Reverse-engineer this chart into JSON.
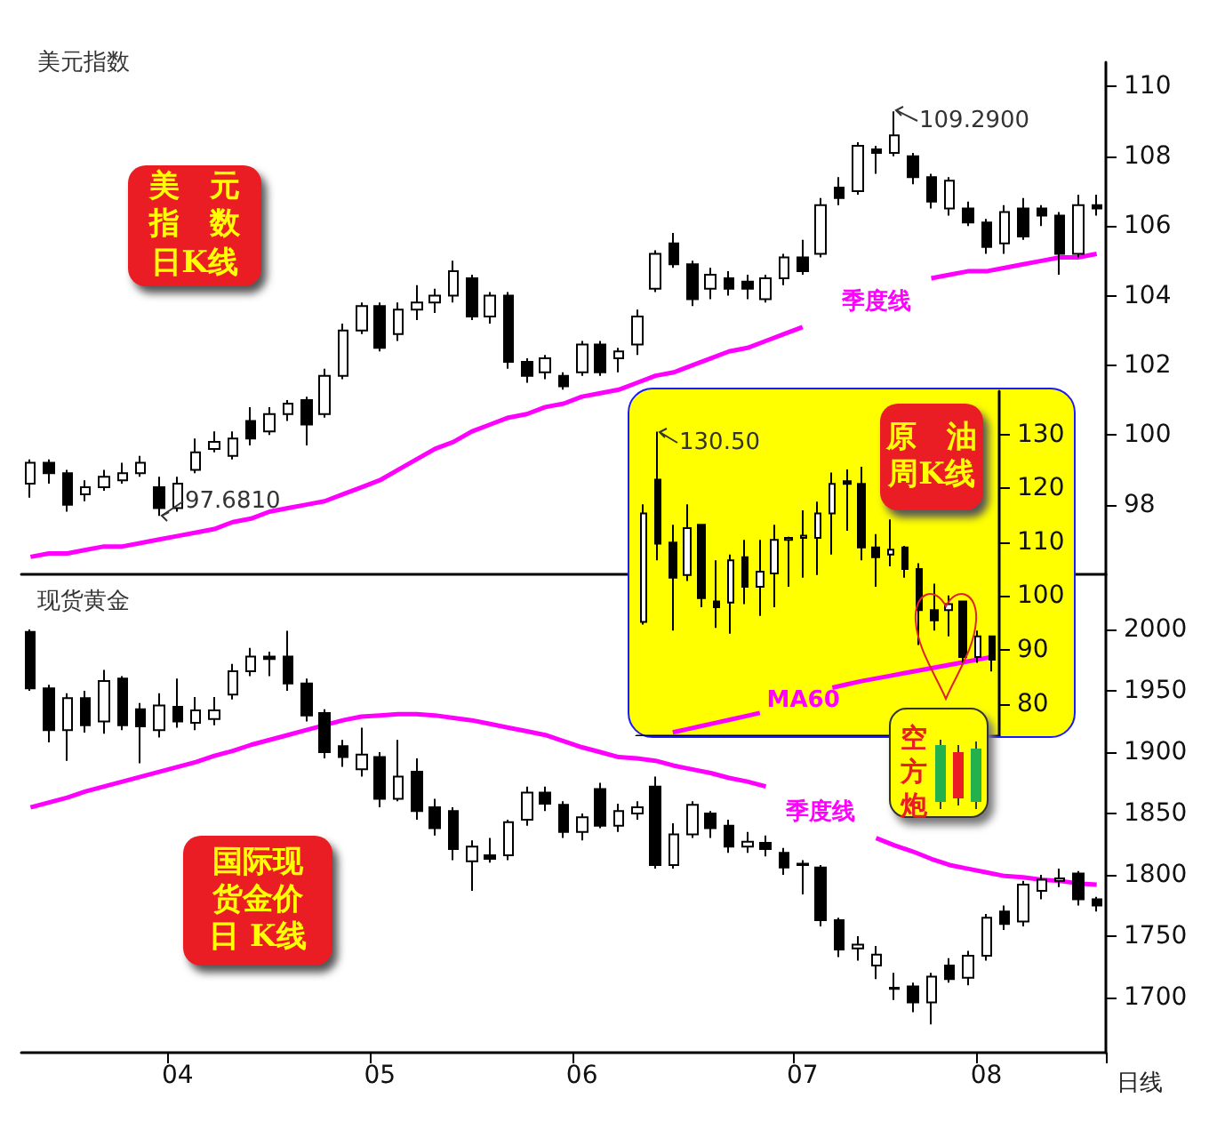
{
  "chart_data": [
    {
      "type": "candlestick",
      "title": "美元指数",
      "tick_labels": "y",
      "categories": [
        null,
        null,
        null,
        null,
        null,
        null,
        null,
        null,
        "04",
        null,
        null,
        null,
        null,
        null,
        null,
        null,
        null,
        null,
        null,
        "05",
        null,
        null,
        null,
        null,
        null,
        null,
        null,
        null,
        null,
        null,
        "06",
        null,
        null,
        null,
        null,
        null,
        null,
        null,
        null,
        null,
        null,
        null,
        "07",
        null,
        null,
        null,
        null,
        null,
        null,
        null,
        null,
        null,
        "08",
        null,
        null,
        null,
        null,
        null,
        null
      ],
      "ohlc": [
        [
          98.6,
          99.3,
          98.2,
          99.2
        ],
        [
          99.2,
          99.3,
          98.6,
          98.9
        ],
        [
          98.9,
          99.0,
          97.8,
          98.0
        ],
        [
          98.3,
          98.7,
          98.1,
          98.5
        ],
        [
          98.5,
          99.0,
          98.4,
          98.8
        ],
        [
          98.7,
          99.2,
          98.6,
          98.9
        ],
        [
          98.9,
          99.4,
          98.8,
          99.2
        ],
        [
          98.5,
          98.8,
          97.681,
          97.9
        ],
        [
          97.9,
          98.8,
          97.8,
          98.6
        ],
        [
          99.0,
          99.9,
          98.9,
          99.5
        ],
        [
          99.6,
          100.1,
          99.5,
          99.8
        ],
        [
          99.4,
          100.1,
          99.3,
          99.9
        ],
        [
          100.4,
          100.8,
          99.7,
          99.9
        ],
        [
          100.1,
          100.8,
          100.0,
          100.6
        ],
        [
          100.6,
          101.0,
          100.4,
          100.9
        ],
        [
          101.0,
          101.1,
          99.7,
          100.3
        ],
        [
          100.6,
          101.9,
          100.5,
          101.7
        ],
        [
          101.7,
          103.2,
          101.6,
          103.0
        ],
        [
          103.0,
          103.8,
          102.9,
          103.7
        ],
        [
          103.7,
          103.8,
          102.4,
          102.5
        ],
        [
          102.9,
          103.8,
          102.7,
          103.6
        ],
        [
          103.6,
          104.3,
          103.3,
          103.8
        ],
        [
          103.8,
          104.2,
          103.5,
          104.0
        ],
        [
          104.0,
          105.0,
          103.8,
          104.7
        ],
        [
          104.5,
          104.6,
          103.3,
          103.4
        ],
        [
          103.4,
          104.1,
          103.2,
          104.0
        ],
        [
          104.0,
          104.1,
          101.9,
          102.1
        ],
        [
          102.1,
          102.2,
          101.5,
          101.7
        ],
        [
          101.8,
          102.3,
          101.6,
          102.2
        ],
        [
          101.7,
          101.8,
          101.3,
          101.4
        ],
        [
          101.8,
          102.7,
          101.7,
          102.6
        ],
        [
          102.6,
          102.7,
          101.7,
          101.8
        ],
        [
          102.2,
          102.5,
          101.8,
          102.4
        ],
        [
          102.6,
          103.6,
          102.3,
          103.4
        ],
        [
          104.2,
          105.3,
          104.1,
          105.2
        ],
        [
          105.5,
          105.8,
          104.8,
          104.9
        ],
        [
          104.9,
          105.0,
          103.7,
          103.9
        ],
        [
          104.2,
          104.8,
          103.9,
          104.6
        ],
        [
          104.5,
          104.7,
          104.0,
          104.2
        ],
        [
          104.4,
          104.6,
          103.9,
          104.2
        ],
        [
          103.9,
          104.6,
          103.8,
          104.5
        ],
        [
          104.5,
          105.2,
          104.3,
          105.1
        ],
        [
          105.1,
          105.6,
          104.6,
          104.7
        ],
        [
          105.2,
          106.8,
          105.1,
          106.6
        ],
        [
          107.1,
          107.4,
          106.6,
          106.8
        ],
        [
          107.0,
          108.4,
          106.9,
          108.3
        ],
        [
          108.2,
          108.3,
          107.5,
          108.1
        ],
        [
          108.1,
          109.29,
          108.0,
          108.6
        ],
        [
          108.0,
          108.1,
          107.2,
          107.4
        ],
        [
          107.4,
          107.5,
          106.5,
          106.7
        ],
        [
          106.5,
          107.4,
          106.3,
          107.3
        ],
        [
          106.5,
          106.7,
          106.0,
          106.1
        ],
        [
          106.1,
          106.2,
          105.2,
          105.4
        ],
        [
          105.5,
          106.6,
          105.2,
          106.4
        ],
        [
          106.5,
          106.8,
          105.6,
          105.7
        ],
        [
          106.5,
          106.6,
          106.0,
          106.3
        ],
        [
          106.3,
          106.4,
          104.6,
          105.2
        ],
        [
          105.2,
          106.9,
          105.1,
          106.6
        ],
        [
          106.6,
          106.9,
          106.3,
          106.5
        ]
      ],
      "series": [
        {
          "type": "line",
          "name": "季度线",
          "color": "#ff00ff",
          "values": [
            96.5,
            96.6,
            96.6,
            96.7,
            96.8,
            96.8,
            96.9,
            97.0,
            97.1,
            97.2,
            97.3,
            97.5,
            97.6,
            97.8,
            97.9,
            98.0,
            98.1,
            98.3,
            98.5,
            98.7,
            99.0,
            99.3,
            99.6,
            99.8,
            100.1,
            100.3,
            100.5,
            100.6,
            100.8,
            100.9,
            101.1,
            101.2,
            101.3,
            101.5,
            101.7,
            101.8,
            102.0,
            102.2,
            102.4,
            102.5,
            102.7,
            102.9,
            103.1,
            null,
            null,
            null,
            null,
            null,
            null,
            104.5,
            104.6,
            104.7,
            104.7,
            104.8,
            104.9,
            105.0,
            105.1,
            105.1,
            105.2
          ]
        }
      ],
      "ylim": [
        96,
        110.7
      ],
      "yticks": [
        98,
        100,
        102,
        104,
        106,
        108,
        110
      ],
      "annotations": [
        "美元指数日K线",
        "109.2900",
        "97.6810"
      ]
    },
    {
      "type": "candlestick",
      "tick_labels": "y",
      "categories": [
        null,
        null,
        null,
        null,
        null,
        null,
        null,
        null,
        null,
        null,
        null,
        null,
        null,
        null,
        null,
        null,
        null,
        null,
        null,
        null,
        null,
        null,
        null,
        null,
        null
      ],
      "ohlc": [
        [
          95.2,
          117,
          94.7,
          115.3
        ],
        [
          121.6,
          130.5,
          106.6,
          109.7
        ],
        [
          109.9,
          113.2,
          93.6,
          103.4
        ],
        [
          103.9,
          117,
          102.8,
          112.6
        ],
        [
          113.2,
          113.2,
          97.9,
          99.6
        ],
        [
          99,
          106.6,
          94.1,
          97.9
        ],
        [
          98.8,
          107.7,
          93,
          106.6
        ],
        [
          107.2,
          110.4,
          98.5,
          101.7
        ],
        [
          101.7,
          110.4,
          96.3,
          104.5
        ],
        [
          104.2,
          113.2,
          97.9,
          110.4
        ],
        [
          110.4,
          111,
          101.7,
          110.8
        ],
        [
          110.8,
          115.9,
          103.4,
          111.2
        ],
        [
          110.8,
          117.5,
          103.9,
          115.3
        ],
        [
          115.3,
          122.9,
          107.7,
          120.8
        ],
        [
          121.3,
          123.5,
          112.1,
          120.8
        ],
        [
          120.8,
          124,
          106.6,
          109
        ],
        [
          109,
          111.5,
          101.7,
          107.2
        ],
        [
          107.7,
          114.2,
          105.5,
          108.6
        ],
        [
          109,
          109.3,
          103.4,
          105
        ],
        [
          105,
          106.1,
          90.9,
          97.4
        ],
        [
          97.4,
          102.3,
          93.6,
          95.5
        ],
        [
          97.4,
          100.1,
          92.5,
          98.5
        ],
        [
          99,
          99,
          87.6,
          88.7
        ],
        [
          88.7,
          93.6,
          87.6,
          92.5
        ],
        [
          92.5,
          92.5,
          86,
          88.2
        ]
      ],
      "series": [
        {
          "type": "line",
          "name": "MA60",
          "color": "#ff00ff",
          "values": [
            null,
            null,
            74.7,
            75.3,
            75.9,
            76.5,
            77.1,
            77.7,
            78.3,
            null,
            null,
            null,
            null,
            83.0,
            83.6,
            84.2,
            84.7,
            85.2,
            85.7,
            86.2,
            86.7,
            87.2,
            87.7,
            88.2,
            88.7
          ]
        }
      ],
      "ylim": [
        74,
        138
      ],
      "yticks": [
        80,
        90,
        100,
        110,
        120,
        130
      ],
      "annotations": [
        "原油周K线",
        "空方炮",
        "130.50"
      ]
    },
    {
      "type": "candlestick",
      "title": "现货黄金",
      "xlabel": "日线",
      "categories": [
        null,
        null,
        null,
        null,
        null,
        null,
        null,
        null,
        "04",
        null,
        null,
        null,
        null,
        null,
        null,
        null,
        null,
        null,
        null,
        "05",
        null,
        null,
        null,
        null,
        null,
        null,
        null,
        null,
        null,
        null,
        "06",
        null,
        null,
        null,
        null,
        null,
        null,
        null,
        null,
        null,
        null,
        null,
        "07",
        null,
        null,
        null,
        null,
        null,
        null,
        null,
        null,
        null,
        "08",
        null,
        null,
        null,
        null,
        null,
        null
      ],
      "ohlc": [
        [
          1998,
          2000,
          1950,
          1952
        ],
        [
          1952,
          1955,
          1908,
          1918
        ],
        [
          1918,
          1948,
          1893,
          1944
        ],
        [
          1944,
          1950,
          1916,
          1922
        ],
        [
          1925,
          1967,
          1915,
          1958
        ],
        [
          1960,
          1962,
          1918,
          1922
        ],
        [
          1935,
          1940,
          1891,
          1921
        ],
        [
          1918,
          1948,
          1912,
          1938
        ],
        [
          1937,
          1960,
          1920,
          1925
        ],
        [
          1924,
          1945,
          1918,
          1934
        ],
        [
          1927,
          1945,
          1922,
          1934
        ],
        [
          1947,
          1972,
          1943,
          1966
        ],
        [
          1966,
          1985,
          1962,
          1978
        ],
        [
          1978,
          1982,
          1962,
          1976
        ],
        [
          1978,
          1999,
          1950,
          1956
        ],
        [
          1956,
          1960,
          1925,
          1930
        ],
        [
          1932,
          1935,
          1895,
          1900
        ],
        [
          1905,
          1910,
          1888,
          1896
        ],
        [
          1886,
          1920,
          1880,
          1898
        ],
        [
          1896,
          1900,
          1855,
          1862
        ],
        [
          1862,
          1910,
          1860,
          1880
        ],
        [
          1884,
          1895,
          1845,
          1852
        ],
        [
          1855,
          1862,
          1832,
          1838
        ],
        [
          1852,
          1855,
          1812,
          1821
        ],
        [
          1811,
          1828,
          1787,
          1823
        ],
        [
          1816,
          1830,
          1810,
          1813
        ],
        [
          1816,
          1845,
          1812,
          1843
        ],
        [
          1845,
          1872,
          1840,
          1867
        ],
        [
          1867,
          1872,
          1852,
          1858
        ],
        [
          1857,
          1860,
          1830,
          1835
        ],
        [
          1835,
          1850,
          1828,
          1847
        ],
        [
          1870,
          1875,
          1838,
          1840
        ],
        [
          1840,
          1858,
          1835,
          1852
        ],
        [
          1850,
          1860,
          1845,
          1855
        ],
        [
          1872,
          1880,
          1805,
          1808
        ],
        [
          1808,
          1842,
          1805,
          1833
        ],
        [
          1833,
          1860,
          1830,
          1857
        ],
        [
          1850,
          1852,
          1830,
          1838
        ],
        [
          1840,
          1845,
          1818,
          1823
        ],
        [
          1823,
          1835,
          1818,
          1827
        ],
        [
          1826,
          1832,
          1815,
          1821
        ],
        [
          1818,
          1822,
          1800,
          1806
        ],
        [
          1808,
          1812,
          1784,
          1809
        ],
        [
          1806,
          1808,
          1758,
          1763
        ],
        [
          1763,
          1765,
          1733,
          1739
        ],
        [
          1740,
          1750,
          1730,
          1743
        ],
        [
          1726,
          1742,
          1715,
          1735
        ],
        [
          1708,
          1720,
          1698,
          1707
        ],
        [
          1709,
          1712,
          1688,
          1696
        ],
        [
          1696,
          1720,
          1678,
          1717
        ],
        [
          1726,
          1732,
          1712,
          1715
        ],
        [
          1716,
          1738,
          1710,
          1734
        ],
        [
          1734,
          1768,
          1730,
          1765
        ],
        [
          1770,
          1775,
          1755,
          1760
        ],
        [
          1762,
          1795,
          1758,
          1792
        ],
        [
          1787,
          1800,
          1780,
          1796
        ],
        [
          1795,
          1805,
          1790,
          1797
        ],
        [
          1801,
          1803,
          1775,
          1780
        ],
        [
          1780,
          1782,
          1770,
          1775
        ]
      ],
      "series": [
        {
          "type": "line",
          "name": "季度线",
          "color": "#ff00ff",
          "values": [
            1855,
            1859,
            1863,
            1868,
            1872,
            1876,
            1880,
            1884,
            1888,
            1892,
            1897,
            1901,
            1906,
            1910,
            1914,
            1918,
            1922,
            1926,
            1929,
            1930,
            1931,
            1931,
            1930,
            1928,
            1926,
            1923,
            1920,
            1917,
            1914,
            1909,
            1904,
            1900,
            1896,
            1895,
            1893,
            1889,
            1886,
            1883,
            1879,
            1876,
            1872,
            null,
            null,
            null,
            null,
            null,
            1830,
            1824,
            1819,
            1813,
            1808,
            1805,
            1802,
            1799,
            1798,
            1796,
            1795,
            1793,
            1792
          ]
        }
      ],
      "ylim": [
        1655,
        2045
      ],
      "yticks": [
        1700,
        1750,
        1800,
        1850,
        1900,
        1950,
        2000
      ],
      "annotations": [
        "国际现货金价日 K线"
      ]
    }
  ]
}
